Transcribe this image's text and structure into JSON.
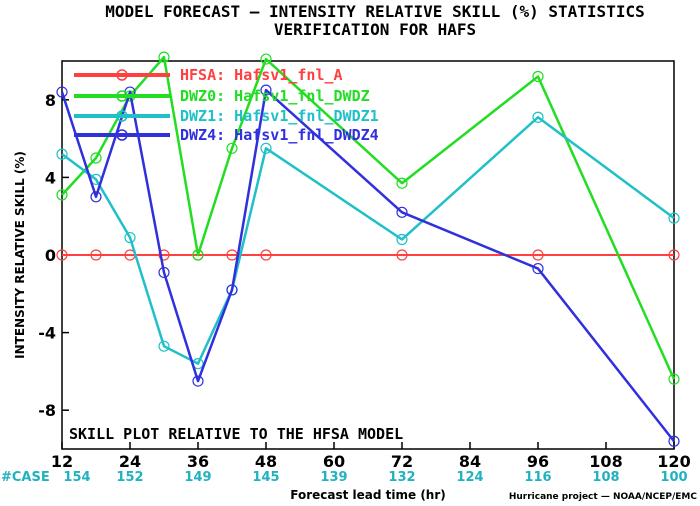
{
  "chart_data": {
    "type": "line",
    "title": "MODEL FORECAST — INTENSITY RELATIVE SKILL (%) STATISTICS",
    "subtitle": "VERIFICATION FOR HAFS",
    "xlabel": "Forecast lead time (hr)",
    "ylabel": "INTENSITY RELATIVE SKILL (%)",
    "xlim": [
      12,
      120
    ],
    "ylim": [
      -10,
      10
    ],
    "xticks": [
      12,
      24,
      36,
      48,
      60,
      72,
      84,
      96,
      108,
      120
    ],
    "yticks": [
      -8,
      -4,
      0,
      4,
      8
    ],
    "grid": false,
    "legend_position": "top-left",
    "case_label": "#CASE",
    "cases": [
      {
        "x": 12,
        "n": "154"
      },
      {
        "x": 24,
        "n": "152"
      },
      {
        "x": 36,
        "n": "149"
      },
      {
        "x": 48,
        "n": "145"
      },
      {
        "x": 60,
        "n": "139"
      },
      {
        "x": 72,
        "n": "132"
      },
      {
        "x": 84,
        "n": "124"
      },
      {
        "x": 96,
        "n": "116"
      },
      {
        "x": 108,
        "n": "108"
      },
      {
        "x": 120,
        "n": "100"
      }
    ],
    "annotation": "SKILL PLOT RELATIVE TO THE HFSA MODEL",
    "credit": "Hurricane project — NOAA/NCEP/EMC",
    "series": [
      {
        "name": "HFSA: Hafsv1_fnl_A",
        "color": "#ff4040",
        "x": [
          12,
          18,
          24,
          30,
          36,
          42,
          48,
          72,
          96,
          120
        ],
        "y": [
          0,
          0,
          0,
          0,
          0,
          0,
          0,
          0,
          0,
          0
        ]
      },
      {
        "name": "DWZ0: Hafsv1_fnl_DWDZ",
        "color": "#22dd22",
        "x": [
          12,
          18,
          24,
          30,
          36,
          42,
          48,
          72,
          96,
          120
        ],
        "y": [
          3.1,
          5.0,
          8.2,
          10.2,
          0.0,
          5.5,
          10.1,
          3.7,
          9.2,
          -6.4
        ]
      },
      {
        "name": "DWZ1: Hafsv1_fnl_DWDZ1",
        "color": "#20c0c8",
        "x": [
          12,
          18,
          24,
          30,
          36,
          42,
          48,
          72,
          96,
          120
        ],
        "y": [
          5.2,
          3.9,
          0.9,
          -4.7,
          -5.6,
          -1.8,
          5.5,
          0.8,
          7.1,
          1.9
        ]
      },
      {
        "name": "DWZ4: Hafsv1_fnl_DWDZ4",
        "color": "#3030dd",
        "x": [
          12,
          18,
          24,
          30,
          36,
          42,
          48,
          72,
          96,
          120
        ],
        "y": [
          8.4,
          3.0,
          8.4,
          -0.9,
          -6.5,
          -1.8,
          8.5,
          2.2,
          -0.7,
          -9.6
        ]
      }
    ]
  }
}
